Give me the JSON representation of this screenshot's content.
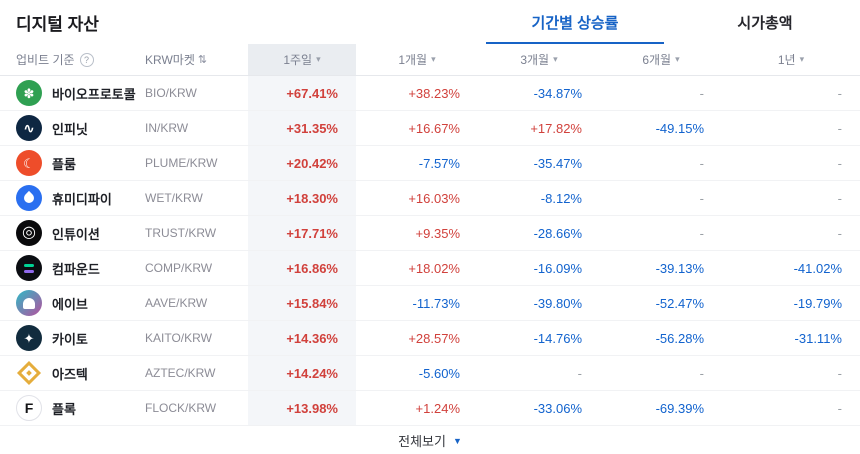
{
  "page": {
    "title": "디지털 자산"
  },
  "tabs": [
    {
      "label": "기간별 상승률",
      "active": true
    },
    {
      "label": "시가총액",
      "active": false
    }
  ],
  "icons": {
    "help": "?",
    "sort": "⇅",
    "caret": "▾",
    "footer_caret": "▼"
  },
  "colors": {
    "up": "#d1413c",
    "down": "#1263ce",
    "accent": "#1763c6"
  },
  "table": {
    "col_asset": "업비트 기준",
    "col_market": "KRW마켓",
    "periods": [
      {
        "label": "1주일",
        "key": "1week"
      },
      {
        "label": "1개월",
        "key": "1month"
      },
      {
        "label": "3개월",
        "key": "3month"
      },
      {
        "label": "6개월",
        "key": "6month"
      },
      {
        "label": "1년",
        "key": "1year"
      }
    ],
    "rows": [
      {
        "name": "바이오프로토콜",
        "pair": "BIO/KRW",
        "icon": {
          "name": "bio-protocol-icon",
          "kind": "glyph",
          "bg": "#2fa052",
          "fg": "#ffffff",
          "glyph": "✽",
          "size": 13
        },
        "values": [
          {
            "t": "+67.41%",
            "d": "up"
          },
          {
            "t": "+38.23%",
            "d": "up"
          },
          {
            "t": "-34.87%",
            "d": "down"
          },
          {
            "t": "-",
            "d": "flat"
          },
          {
            "t": "-",
            "d": "flat"
          }
        ]
      },
      {
        "name": "인피닛",
        "pair": "IN/KRW",
        "icon": {
          "name": "infinit-icon",
          "kind": "glyph",
          "bg": "#0e2742",
          "fg": "#ffffff",
          "glyph": "∿",
          "size": 14
        },
        "values": [
          {
            "t": "+31.35%",
            "d": "up"
          },
          {
            "t": "+16.67%",
            "d": "up"
          },
          {
            "t": "+17.82%",
            "d": "up"
          },
          {
            "t": "-49.15%",
            "d": "down"
          },
          {
            "t": "-",
            "d": "flat"
          }
        ]
      },
      {
        "name": "플룸",
        "pair": "PLUME/KRW",
        "icon": {
          "name": "plume-icon",
          "kind": "glyph",
          "bg": "#ee4d2a",
          "fg": "#ffffff",
          "glyph": "☾",
          "size": 13
        },
        "values": [
          {
            "t": "+20.42%",
            "d": "up"
          },
          {
            "t": "-7.57%",
            "d": "down"
          },
          {
            "t": "-35.47%",
            "d": "down"
          },
          {
            "t": "-",
            "d": "flat"
          },
          {
            "t": "-",
            "d": "flat"
          }
        ]
      },
      {
        "name": "휴미디파이",
        "pair": "WET/KRW",
        "icon": {
          "name": "humidifi-icon",
          "kind": "drop",
          "bg": "#2a6ff0",
          "fg": "#ffffff"
        },
        "values": [
          {
            "t": "+18.30%",
            "d": "up"
          },
          {
            "t": "+16.03%",
            "d": "up"
          },
          {
            "t": "-8.12%",
            "d": "down"
          },
          {
            "t": "-",
            "d": "flat"
          },
          {
            "t": "-",
            "d": "flat"
          }
        ]
      },
      {
        "name": "인튜이션",
        "pair": "TRUST/KRW",
        "icon": {
          "name": "intuition-icon",
          "kind": "glyph",
          "bg": "#0a0a0c",
          "fg": "#ffffff",
          "glyph": "◎",
          "size": 16
        },
        "values": [
          {
            "t": "+17.71%",
            "d": "up"
          },
          {
            "t": "+9.35%",
            "d": "up"
          },
          {
            "t": "-28.66%",
            "d": "down"
          },
          {
            "t": "-",
            "d": "flat"
          },
          {
            "t": "-",
            "d": "flat"
          }
        ]
      },
      {
        "name": "컴파운드",
        "pair": "COMP/KRW",
        "icon": {
          "name": "compound-icon",
          "kind": "bars",
          "bg": "#0b0d12",
          "fg": "#00d395"
        },
        "values": [
          {
            "t": "+16.86%",
            "d": "up"
          },
          {
            "t": "+18.02%",
            "d": "up"
          },
          {
            "t": "-16.09%",
            "d": "down"
          },
          {
            "t": "-39.13%",
            "d": "down"
          },
          {
            "t": "-41.02%",
            "d": "down"
          }
        ]
      },
      {
        "name": "에이브",
        "pair": "AAVE/KRW",
        "icon": {
          "name": "aave-icon",
          "kind": "ghost",
          "bg": "linear-gradient(135deg,#2ebac6,#b6509e)",
          "fg": "#ffffff"
        },
        "values": [
          {
            "t": "+15.84%",
            "d": "up"
          },
          {
            "t": "-11.73%",
            "d": "down"
          },
          {
            "t": "-39.80%",
            "d": "down"
          },
          {
            "t": "-52.47%",
            "d": "down"
          },
          {
            "t": "-19.79%",
            "d": "down"
          }
        ]
      },
      {
        "name": "카이토",
        "pair": "KAITO/KRW",
        "icon": {
          "name": "kaito-icon",
          "kind": "glyph",
          "bg": "#122c3e",
          "fg": "#ffffff",
          "glyph": "✦",
          "size": 13
        },
        "values": [
          {
            "t": "+14.36%",
            "d": "up"
          },
          {
            "t": "+28.57%",
            "d": "up"
          },
          {
            "t": "-14.76%",
            "d": "down"
          },
          {
            "t": "-56.28%",
            "d": "down"
          },
          {
            "t": "-31.11%",
            "d": "down"
          }
        ]
      },
      {
        "name": "아즈텍",
        "pair": "AZTEC/KRW",
        "icon": {
          "name": "aztec-icon",
          "kind": "diamond",
          "bg": "transparent",
          "fg": "#e5ad3c"
        },
        "values": [
          {
            "t": "+14.24%",
            "d": "up"
          },
          {
            "t": "-5.60%",
            "d": "down"
          },
          {
            "t": "-",
            "d": "flat"
          },
          {
            "t": "-",
            "d": "flat"
          },
          {
            "t": "-",
            "d": "flat"
          }
        ]
      },
      {
        "name": "플록",
        "pair": "FLOCK/KRW",
        "icon": {
          "name": "flock-icon",
          "kind": "glyph",
          "bg": "#ffffff",
          "fg": "#141416",
          "glyph": "F",
          "size": 14,
          "border": true
        },
        "values": [
          {
            "t": "+13.98%",
            "d": "up"
          },
          {
            "t": "+1.24%",
            "d": "up"
          },
          {
            "t": "-33.06%",
            "d": "down"
          },
          {
            "t": "-69.39%",
            "d": "down"
          },
          {
            "t": "-",
            "d": "flat"
          }
        ]
      }
    ]
  },
  "footer": {
    "view_all": "전체보기"
  }
}
